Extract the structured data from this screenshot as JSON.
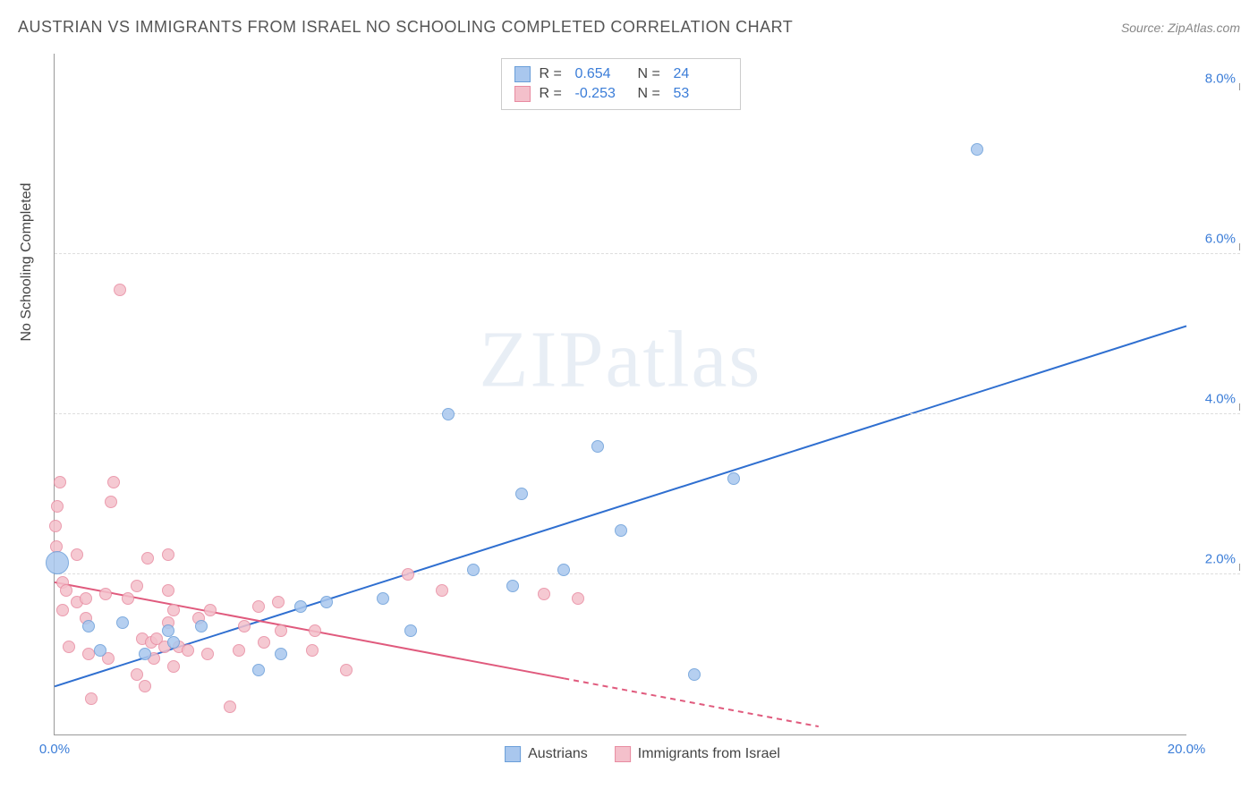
{
  "title": "AUSTRIAN VS IMMIGRANTS FROM ISRAEL NO SCHOOLING COMPLETED CORRELATION CHART",
  "source": "Source: ZipAtlas.com",
  "watermark": "ZIPatlas",
  "chart": {
    "type": "scatter",
    "y_axis_label": "No Schooling Completed",
    "xlim": [
      0,
      20
    ],
    "ylim": [
      0,
      8.5
    ],
    "x_ticks": [
      {
        "pos": 0,
        "label": "0.0%",
        "color": "#3b7dd8"
      },
      {
        "pos": 20,
        "label": "20.0%",
        "color": "#3b7dd8"
      }
    ],
    "y_ticks_right": [
      {
        "pos": 2,
        "label": "2.0%",
        "color": "#3b7dd8"
      },
      {
        "pos": 4,
        "label": "4.0%",
        "color": "#3b7dd8"
      },
      {
        "pos": 6,
        "label": "6.0%",
        "color": "#3b7dd8"
      },
      {
        "pos": 8,
        "label": "8.0%",
        "color": "#3b7dd8"
      }
    ],
    "gridlines_y": [
      2,
      4,
      6
    ],
    "grid_color": "#dddddd",
    "background_color": "#ffffff",
    "series": [
      {
        "name": "Austrians",
        "color_fill": "#a9c7ee",
        "color_stroke": "#6a9ed9",
        "marker_size": 14,
        "big_marker_size": 26,
        "trend": {
          "x1": 0,
          "y1": 0.6,
          "x2": 20,
          "y2": 5.1,
          "color": "#2f6fd0",
          "width": 2
        },
        "R": "0.654",
        "N": "24",
        "points": [
          {
            "x": 0.05,
            "y": 2.15,
            "size": 26
          },
          {
            "x": 0.6,
            "y": 1.35
          },
          {
            "x": 0.8,
            "y": 1.05
          },
          {
            "x": 1.2,
            "y": 1.4
          },
          {
            "x": 1.6,
            "y": 1.0
          },
          {
            "x": 2.1,
            "y": 1.15
          },
          {
            "x": 2.0,
            "y": 1.3
          },
          {
            "x": 2.6,
            "y": 1.35
          },
          {
            "x": 3.6,
            "y": 0.8
          },
          {
            "x": 4.0,
            "y": 1.0
          },
          {
            "x": 4.35,
            "y": 1.6
          },
          {
            "x": 4.8,
            "y": 1.65
          },
          {
            "x": 5.8,
            "y": 1.7
          },
          {
            "x": 6.3,
            "y": 1.3
          },
          {
            "x": 6.95,
            "y": 4.0
          },
          {
            "x": 7.4,
            "y": 2.05
          },
          {
            "x": 8.1,
            "y": 1.85
          },
          {
            "x": 8.25,
            "y": 3.0
          },
          {
            "x": 9.0,
            "y": 2.05
          },
          {
            "x": 9.6,
            "y": 3.6
          },
          {
            "x": 10.0,
            "y": 2.55
          },
          {
            "x": 11.3,
            "y": 0.75
          },
          {
            "x": 12.0,
            "y": 3.2
          },
          {
            "x": 16.3,
            "y": 7.3
          }
        ]
      },
      {
        "name": "Immigrants from Israel",
        "color_fill": "#f4c0cb",
        "color_stroke": "#e88ba1",
        "marker_size": 14,
        "trend": {
          "x1": 0,
          "y1": 1.9,
          "x2": 13.5,
          "y2": 0.1,
          "color": "#e05a7d",
          "width": 2,
          "dash_after_x": 9.0
        },
        "R": "-0.253",
        "N": "53",
        "points": [
          {
            "x": 0.02,
            "y": 2.6
          },
          {
            "x": 0.03,
            "y": 2.35
          },
          {
            "x": 0.05,
            "y": 2.85
          },
          {
            "x": 0.1,
            "y": 3.15
          },
          {
            "x": 0.15,
            "y": 1.9
          },
          {
            "x": 0.15,
            "y": 1.55
          },
          {
            "x": 0.2,
            "y": 1.8
          },
          {
            "x": 0.25,
            "y": 1.1
          },
          {
            "x": 0.4,
            "y": 1.65
          },
          {
            "x": 0.4,
            "y": 2.25
          },
          {
            "x": 0.55,
            "y": 1.7
          },
          {
            "x": 0.55,
            "y": 1.45
          },
          {
            "x": 0.6,
            "y": 1.0
          },
          {
            "x": 0.65,
            "y": 0.45
          },
          {
            "x": 0.9,
            "y": 1.75
          },
          {
            "x": 0.95,
            "y": 0.95
          },
          {
            "x": 1.0,
            "y": 2.9
          },
          {
            "x": 1.05,
            "y": 3.15
          },
          {
            "x": 1.15,
            "y": 5.55
          },
          {
            "x": 1.3,
            "y": 1.7
          },
          {
            "x": 1.45,
            "y": 0.75
          },
          {
            "x": 1.45,
            "y": 1.85
          },
          {
            "x": 1.55,
            "y": 1.2
          },
          {
            "x": 1.6,
            "y": 0.6
          },
          {
            "x": 1.65,
            "y": 2.2
          },
          {
            "x": 1.7,
            "y": 1.15
          },
          {
            "x": 1.75,
            "y": 0.95
          },
          {
            "x": 1.8,
            "y": 1.2
          },
          {
            "x": 1.95,
            "y": 1.1
          },
          {
            "x": 2.0,
            "y": 1.8
          },
          {
            "x": 2.0,
            "y": 2.25
          },
          {
            "x": 2.0,
            "y": 1.4
          },
          {
            "x": 2.1,
            "y": 0.85
          },
          {
            "x": 2.1,
            "y": 1.55
          },
          {
            "x": 2.2,
            "y": 1.1
          },
          {
            "x": 2.35,
            "y": 1.05
          },
          {
            "x": 2.55,
            "y": 1.45
          },
          {
            "x": 2.7,
            "y": 1.0
          },
          {
            "x": 2.75,
            "y": 1.55
          },
          {
            "x": 3.1,
            "y": 0.35
          },
          {
            "x": 3.25,
            "y": 1.05
          },
          {
            "x": 3.35,
            "y": 1.35
          },
          {
            "x": 3.6,
            "y": 1.6
          },
          {
            "x": 3.7,
            "y": 1.15
          },
          {
            "x": 3.95,
            "y": 1.65
          },
          {
            "x": 4.0,
            "y": 1.3
          },
          {
            "x": 4.55,
            "y": 1.05
          },
          {
            "x": 4.6,
            "y": 1.3
          },
          {
            "x": 5.15,
            "y": 0.8
          },
          {
            "x": 6.25,
            "y": 2.0
          },
          {
            "x": 6.85,
            "y": 1.8
          },
          {
            "x": 8.65,
            "y": 1.75
          },
          {
            "x": 9.25,
            "y": 1.7
          }
        ]
      }
    ],
    "legend_top": {
      "R_label": "R =",
      "N_label": "N =",
      "value_color": "#3b7dd8",
      "label_color": "#444444"
    },
    "legend_bottom_labels": [
      "Austrians",
      "Immigrants from Israel"
    ]
  }
}
